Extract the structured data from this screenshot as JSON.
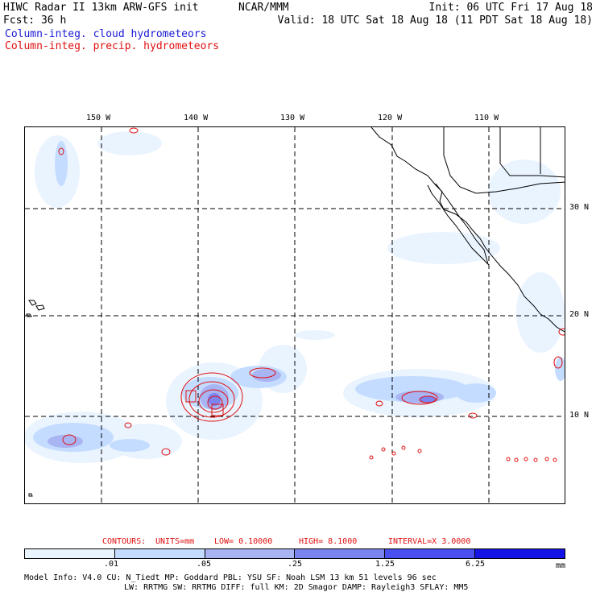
{
  "header": {
    "title": "HIWC Radar II 13km ARW-GFS init",
    "center": "NCAR/MMM",
    "init": "Init: 06 UTC Fri 17 Aug 18",
    "fcst": "Fcst:   36 h",
    "valid": "Valid: 18 UTC Sat 18 Aug 18 (11 PDT Sat 18 Aug 18)",
    "field1": "Column-integ. cloud hydrometeors",
    "field2": "Column-integ. precip. hydrometeors"
  },
  "map": {
    "lon_labels": [
      "150 W",
      "140 W",
      "130 W",
      "120 W",
      "110 W"
    ],
    "lat_labels": [
      "30 N",
      "20 N",
      "10 N"
    ],
    "colors": {
      "level1": "#eaf4ff",
      "level2": "#c4dcff",
      "level3": "#a9b4f2",
      "level4": "#7c84f0",
      "level5": "#4a4ff0",
      "level6": "#1414e6",
      "contour": "#e01010"
    }
  },
  "contours": {
    "label": "CONTOURS:",
    "units": "UNITS=mm",
    "low": "LOW= 0.10000",
    "high": "HIGH= 8.1000",
    "interval": "INTERVAL=X  3.0000"
  },
  "colorbar": {
    "ticks": [
      ".01",
      ".05",
      ".25",
      "1.25",
      "6.25"
    ],
    "unit": "mm",
    "colors": [
      "#ffffff",
      "#eaf4ff",
      "#c4dcff",
      "#a9b4f2",
      "#7c84f0",
      "#4a4ff0",
      "#1414e6"
    ]
  },
  "model_info": {
    "line1": "Model Info: V4.0     CU: N_Tiedt  MP: Goddard    PBL: YSU     SF: Noah LSM    13 km   51 levels   96 sec",
    "line2": "LW: RRTMG    SW: RRTMG   DIFF: full    KM: 2D Smagor  DAMP: Rayleigh3  SFLAY: MM5"
  }
}
